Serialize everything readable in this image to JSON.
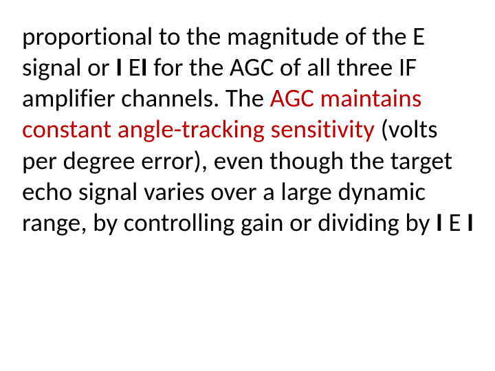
{
  "slide": {
    "background_color": "#ffffff",
    "text_color": "#000000",
    "highlight_color": "#c00000",
    "font_family": "Calibri",
    "font_size_pt": 28,
    "line_height": 1.22,
    "segments": {
      "s1": "proportional to the magnitude of the E signal or ",
      "s2_bold": "I",
      "s3": " E",
      "s4_bold": "I",
      "s5": " for the AGC of all three IF amplifier channels. The ",
      "s6_hl": "AGC maintains constant angle-tracking sensitivity",
      "s7": " (volts per degree error), even though the target echo signal varies over a large dynamic range, by controlling gain or dividing by ",
      "s8_bold": "I",
      "s9": " E ",
      "s10_bold": "I"
    }
  }
}
